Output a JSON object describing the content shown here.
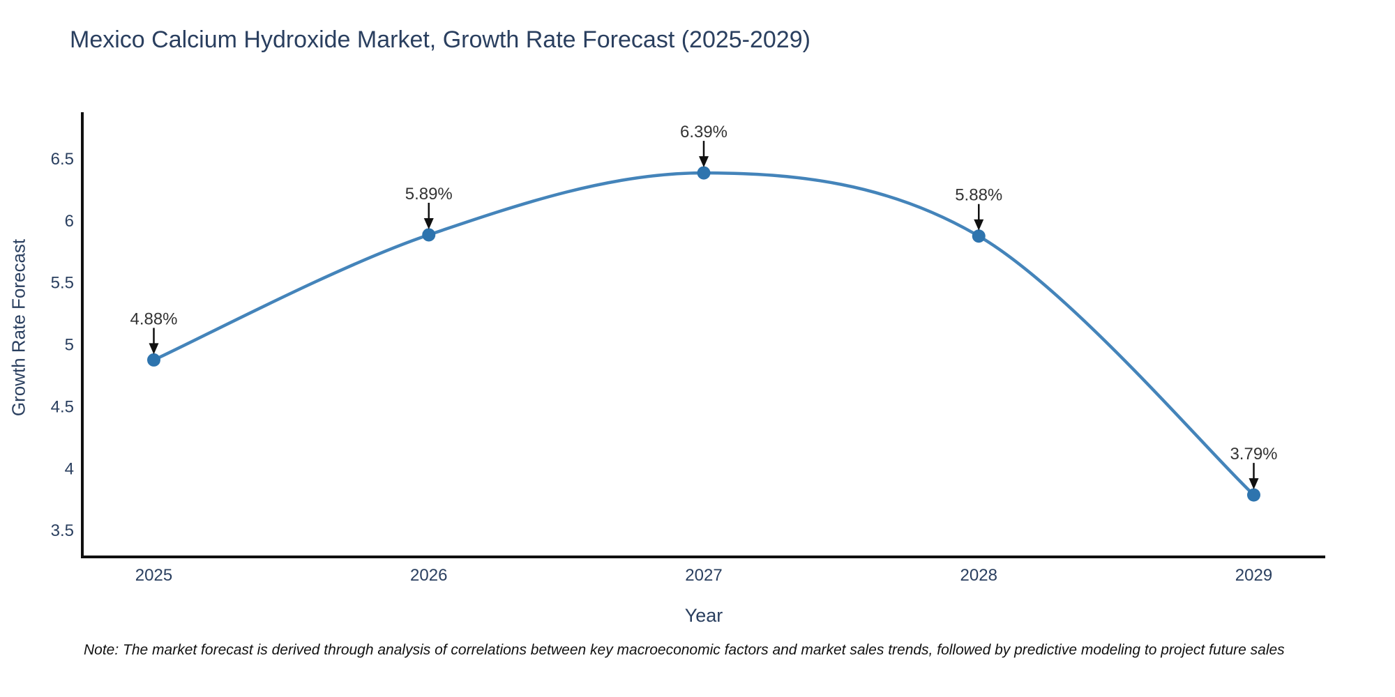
{
  "chart_data": {
    "type": "line",
    "title": "Mexico Calcium Hydroxide Market, Growth Rate Forecast (2025-2029)",
    "xlabel": "Year",
    "ylabel": "Growth Rate Forecast",
    "categories": [
      "2025",
      "2026",
      "2027",
      "2028",
      "2029"
    ],
    "x": [
      2025,
      2026,
      2027,
      2028,
      2029
    ],
    "values": [
      4.88,
      5.89,
      6.39,
      5.88,
      3.79
    ],
    "point_labels": [
      "4.88%",
      "5.89%",
      "6.39%",
      "5.88%",
      "3.79%"
    ],
    "yticks": [
      3.5,
      4,
      4.5,
      5,
      5.5,
      6,
      6.5
    ],
    "ytick_labels": [
      "3.5",
      "4",
      "4.5",
      "5",
      "5.5",
      "6",
      "6.5"
    ],
    "xlim": [
      2024.74,
      2029.26
    ],
    "ylim": [
      3.29,
      6.88
    ],
    "grid": false,
    "legend": "none",
    "line_shape": "spline",
    "colors": {
      "line": "#4484ba",
      "marker": "#2e74ae",
      "axis": "#101010",
      "arrow": "#101010",
      "title_text": "#2a3f5f",
      "tick_text": "#2a3f5f",
      "annotation_text": "#333333",
      "background": "#ffffff"
    }
  },
  "note": {
    "text": "Note: The market forecast is derived through analysis of correlations between key macroeconomic factors and market sales trends, followed by predictive modeling to project future sales"
  }
}
